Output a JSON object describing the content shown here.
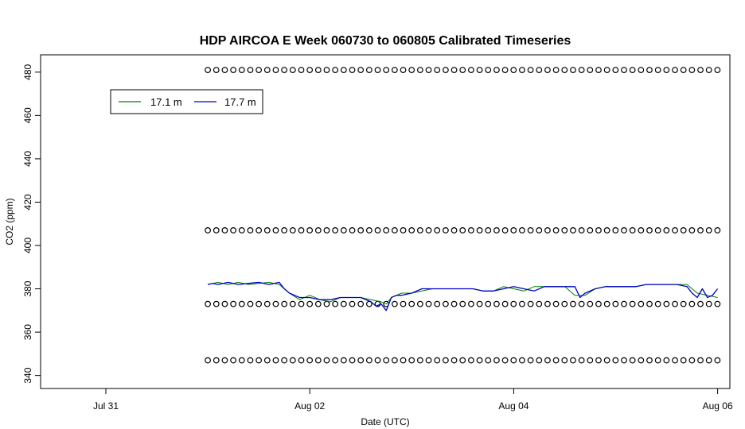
{
  "chart_data": {
    "type": "line",
    "title": "HDP AIRCOA E  Week 060730 to 060805  Calibrated Timeseries",
    "xlabel": "Date (UTC)",
    "ylabel": "CO2 (ppm)",
    "x_unit": "days",
    "xlim": [
      -0.64,
      6.12
    ],
    "ylim": [
      334,
      488
    ],
    "x_ticks": [
      {
        "value": 0,
        "label": "Jul 31"
      },
      {
        "value": 2,
        "label": "Aug 02"
      },
      {
        "value": 4,
        "label": "Aug 04"
      },
      {
        "value": 6,
        "label": "Aug 06"
      }
    ],
    "y_ticks": [
      340,
      360,
      380,
      400,
      420,
      440,
      460,
      480
    ],
    "grid": false,
    "legend": {
      "position": "top-left",
      "entries": [
        {
          "name": "17.1 m",
          "color": "#008000"
        },
        {
          "name": "17.7 m",
          "color": "#0000cc"
        }
      ]
    },
    "series": [
      {
        "name": "17.1 m",
        "color": "#008000",
        "x": [
          1.0,
          1.1,
          1.2,
          1.3,
          1.4,
          1.5,
          1.6,
          1.7,
          1.8,
          1.9,
          2.0,
          2.1,
          2.2,
          2.3,
          2.4,
          2.5,
          2.6,
          2.7,
          2.75,
          2.8,
          2.9,
          3.0,
          3.1,
          3.2,
          3.3,
          3.4,
          3.5,
          3.6,
          3.7,
          3.8,
          3.9,
          4.0,
          4.1,
          4.2,
          4.3,
          4.4,
          4.5,
          4.6,
          4.7,
          4.8,
          4.9,
          5.0,
          5.1,
          5.2,
          5.3,
          5.4,
          5.5,
          5.6,
          5.7,
          5.8,
          5.9,
          6.0
        ],
        "values": [
          382,
          383,
          382,
          383,
          382,
          382.5,
          383,
          382,
          378,
          375,
          377,
          375,
          374,
          376,
          376,
          376,
          375,
          374,
          373,
          376,
          378,
          378,
          379,
          380,
          380,
          380,
          380,
          380,
          379,
          379,
          381,
          380,
          379,
          381,
          381,
          381,
          381,
          377,
          377,
          380,
          381,
          381,
          381,
          381,
          382,
          382,
          382,
          382,
          382,
          378,
          377,
          376
        ]
      },
      {
        "name": "17.7 m",
        "color": "#0000cc",
        "x": [
          1.0,
          1.05,
          1.1,
          1.2,
          1.3,
          1.4,
          1.5,
          1.6,
          1.7,
          1.75,
          1.8,
          1.9,
          2.0,
          2.1,
          2.2,
          2.3,
          2.4,
          2.5,
          2.6,
          2.65,
          2.7,
          2.75,
          2.8,
          2.85,
          2.9,
          3.0,
          3.1,
          3.2,
          3.3,
          3.4,
          3.5,
          3.6,
          3.7,
          3.8,
          3.9,
          4.0,
          4.1,
          4.2,
          4.3,
          4.4,
          4.5,
          4.6,
          4.65,
          4.7,
          4.8,
          4.9,
          5.0,
          5.1,
          5.2,
          5.3,
          5.4,
          5.5,
          5.6,
          5.7,
          5.75,
          5.8,
          5.85,
          5.9,
          5.95,
          6.0
        ],
        "values": [
          382,
          382.5,
          382,
          383,
          382,
          382.5,
          383,
          382,
          383,
          380,
          378,
          376,
          376,
          375,
          375,
          376,
          376,
          376,
          374,
          372,
          373,
          370,
          376,
          377,
          377,
          378,
          380,
          380,
          380,
          380,
          380,
          380,
          379,
          379,
          380,
          381,
          380,
          379,
          381,
          381,
          381,
          381,
          376,
          378,
          380,
          381,
          381,
          381,
          381,
          382,
          382,
          382,
          382,
          381,
          378,
          376,
          380,
          376,
          377,
          380
        ]
      }
    ],
    "calibration_points": {
      "marker": "open-circle",
      "levels": [
        481,
        407,
        373,
        347
      ],
      "x_start": 1.0,
      "x_end": 6.0,
      "interval": 0.0833
    }
  }
}
